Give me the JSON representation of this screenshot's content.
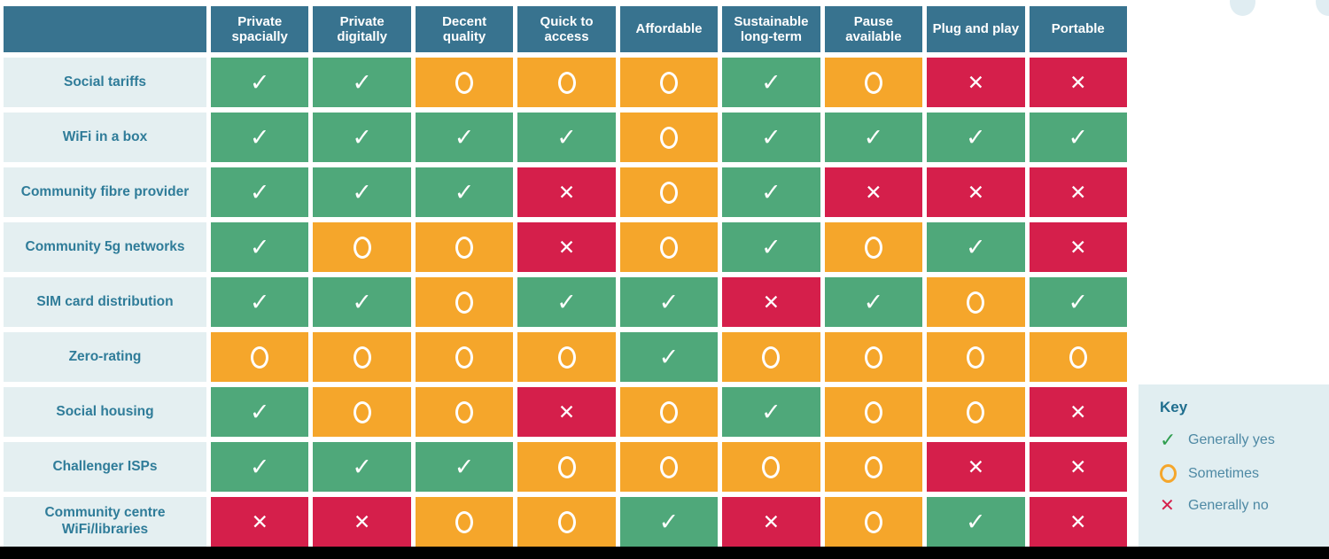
{
  "chart_data": {
    "type": "table",
    "title": "",
    "columns": [
      "Private spacially",
      "Private digitally",
      "Decent quality",
      "Quick to access",
      "Affordable",
      "Sustainable long-term",
      "Pause available",
      "Plug and play",
      "Portable"
    ],
    "rows": [
      {
        "label": "Social tariffs",
        "values": [
          "yes",
          "yes",
          "some",
          "some",
          "some",
          "yes",
          "some",
          "no",
          "no"
        ]
      },
      {
        "label": "WiFi in a box",
        "values": [
          "yes",
          "yes",
          "yes",
          "yes",
          "some",
          "yes",
          "yes",
          "yes",
          "yes"
        ]
      },
      {
        "label": "Community fibre provider",
        "values": [
          "yes",
          "yes",
          "yes",
          "no",
          "some",
          "yes",
          "no",
          "no",
          "no"
        ]
      },
      {
        "label": "Community 5g networks",
        "values": [
          "yes",
          "some",
          "some",
          "no",
          "some",
          "yes",
          "some",
          "yes",
          "no"
        ]
      },
      {
        "label": "SIM card distribution",
        "values": [
          "yes",
          "yes",
          "some",
          "yes",
          "yes",
          "no",
          "yes",
          "some",
          "yes"
        ]
      },
      {
        "label": "Zero-rating",
        "values": [
          "some",
          "some",
          "some",
          "some",
          "yes",
          "some",
          "some",
          "some",
          "some"
        ]
      },
      {
        "label": "Social housing",
        "values": [
          "yes",
          "some",
          "some",
          "no",
          "some",
          "yes",
          "some",
          "some",
          "no"
        ]
      },
      {
        "label": "Challenger ISPs",
        "values": [
          "yes",
          "yes",
          "yes",
          "some",
          "some",
          "some",
          "some",
          "no",
          "no"
        ]
      },
      {
        "label": "Community centre WiFi/libraries",
        "values": [
          "no",
          "no",
          "some",
          "some",
          "yes",
          "no",
          "some",
          "yes",
          "no"
        ]
      }
    ],
    "legend_position": "right"
  },
  "key": {
    "title": "Key",
    "items": [
      {
        "symbol": "yes",
        "label": "Generally yes"
      },
      {
        "symbol": "some",
        "label": "Sometimes"
      },
      {
        "symbol": "no",
        "label": "Generally no"
      }
    ]
  },
  "colors": {
    "yes": "#4FA87A",
    "some": "#F5A62B",
    "no": "#D51F4B",
    "header_bg": "#38738F",
    "label_bg": "#E4EFF1",
    "label_text": "#2F7C99",
    "key_bg": "#E1EEF1",
    "key_title": "#1F6E8E",
    "key_text": "#4E89A4",
    "key_yes": "#2F9E4F",
    "blob": "#E0EDF2"
  }
}
